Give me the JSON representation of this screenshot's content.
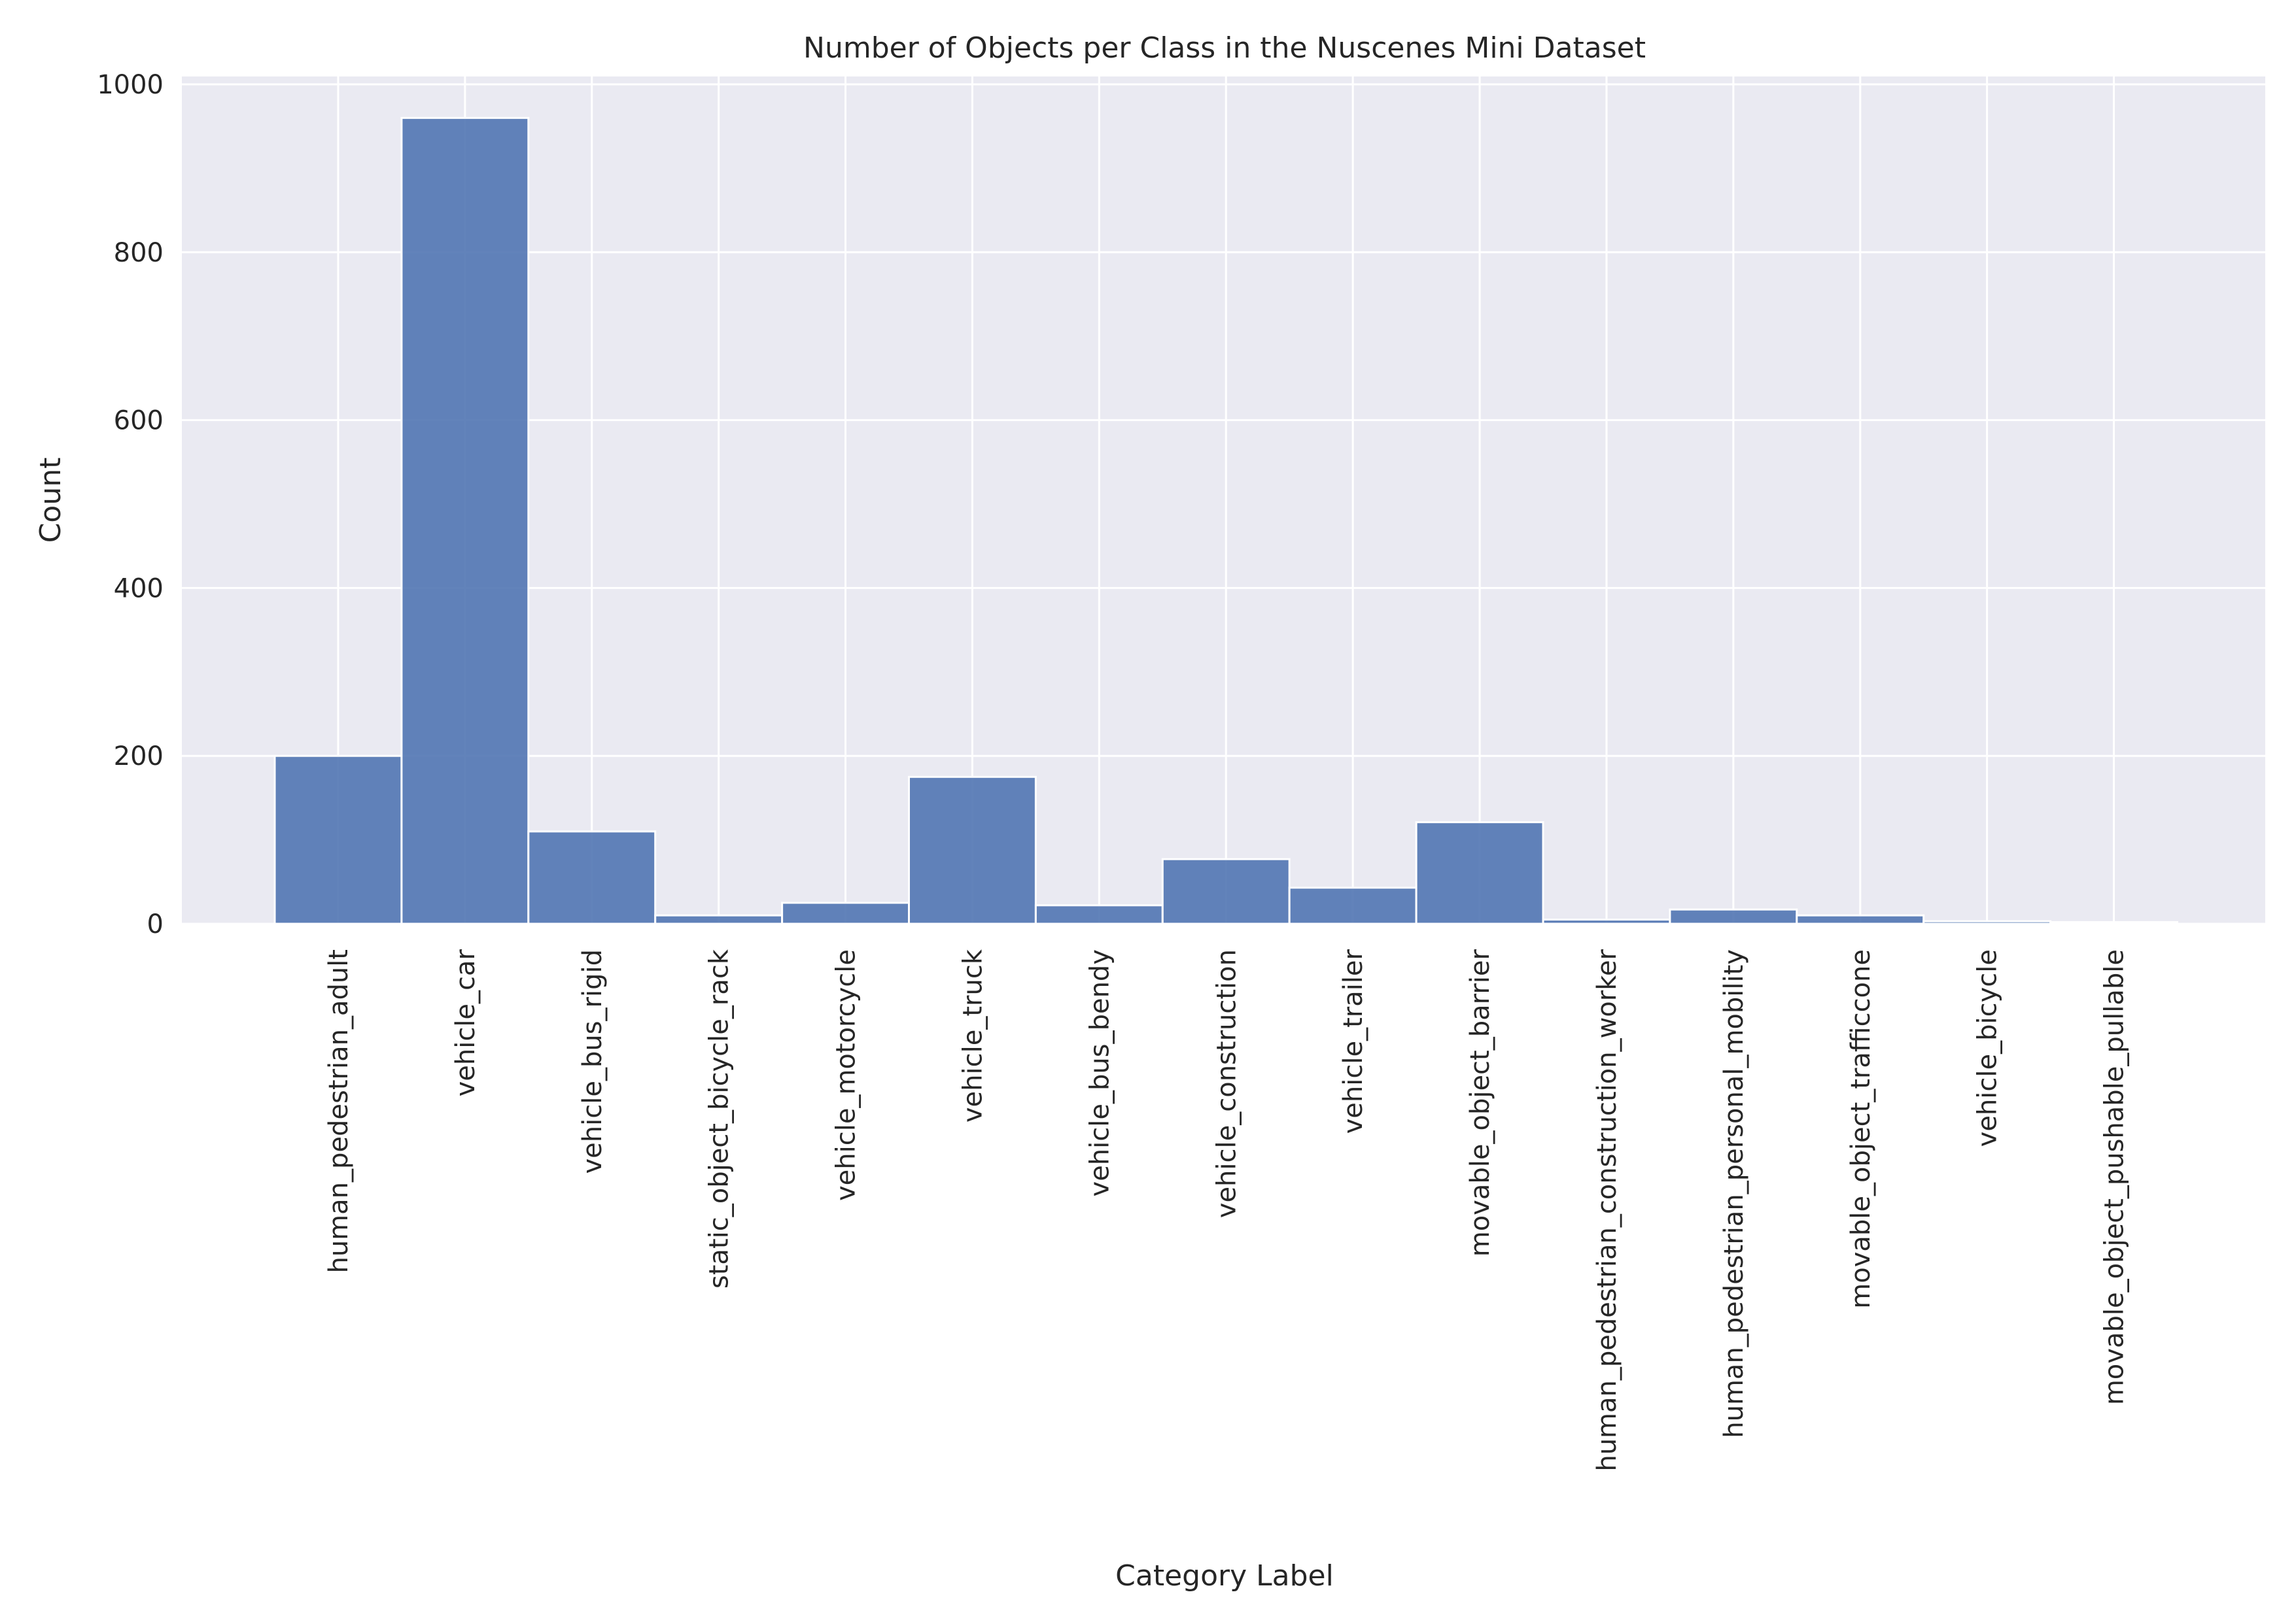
{
  "chart_data": {
    "type": "bar",
    "title": "Number of Objects per Class in the Nuscenes Mini Dataset",
    "xlabel": "Category Label",
    "ylabel": "Count",
    "ylim": [
      0,
      1000
    ],
    "yticks": [
      0,
      200,
      400,
      600,
      800,
      1000
    ],
    "grid": true,
    "categories": [
      "human_pedestrian_adult",
      "vehicle_car",
      "vehicle_bus_rigid",
      "static_object_bicycle_rack",
      "vehicle_motorcycle",
      "vehicle_truck",
      "vehicle_bus_bendy",
      "vehicle_construction",
      "vehicle_trailer",
      "movable_object_barrier",
      "human_pedestrian_construction_worker",
      "human_pedestrian_personal_mobility",
      "movable_object_trafficcone",
      "vehicle_bicycle",
      "movable_object_pushable_pullable"
    ],
    "values": [
      200,
      960,
      110,
      10,
      25,
      175,
      22,
      77,
      43,
      121,
      5,
      17,
      10,
      3,
      2
    ],
    "colors": {
      "bar": "#4c72b0",
      "background": "#eaeaf2",
      "grid": "#ffffff",
      "text": "#262626"
    }
  }
}
